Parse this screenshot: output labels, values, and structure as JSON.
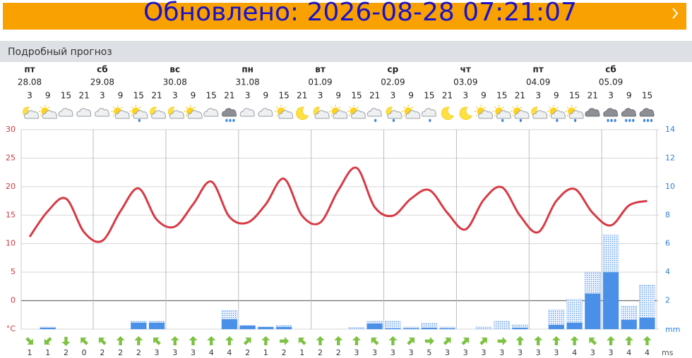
{
  "header": {
    "updated": "Обновлено: 2026-08-28 07:21:07"
  },
  "section_title": "Подробный прогноз",
  "days": [
    {
      "name": "пт",
      "date": "28.08"
    },
    {
      "name": "сб",
      "date": "29.08"
    },
    {
      "name": "вс",
      "date": "30.08"
    },
    {
      "name": "пн",
      "date": "31.08"
    },
    {
      "name": "вт",
      "date": "01.09"
    },
    {
      "name": "ср",
      "date": "02.09"
    },
    {
      "name": "чт",
      "date": "03.09"
    },
    {
      "name": "пт",
      "date": "04.09"
    },
    {
      "name": "сб",
      "date": "05.09"
    }
  ],
  "chart_data": {
    "type": "line",
    "categories": [
      3,
      9,
      15,
      21,
      3,
      9,
      15,
      21,
      3,
      9,
      15,
      21,
      3,
      9,
      15,
      21,
      3,
      9,
      15,
      21,
      3,
      9,
      15,
      21,
      3,
      9,
      15,
      21,
      3,
      9,
      15,
      21,
      3,
      9,
      15
    ],
    "icons": [
      "moon-cloud",
      "sun-cloud",
      "cloud",
      "cloud",
      "cloud",
      "sun-cloud",
      "sun-cloud-rain",
      "moon-cloud",
      "moon-cloud",
      "sun-cloud",
      "cloud",
      "dark-rain",
      "cloud",
      "cloud",
      "sun-cloud",
      "moon",
      "moon-cloud",
      "sun-cloud",
      "sun-cloud",
      "cloud-rain",
      "moon-cloud-rain",
      "sun-cloud",
      "cloud-rain",
      "moon",
      "moon",
      "sun-cloud",
      "sun-cloud-rain",
      "sun-cloud-rain",
      "moon-cloud",
      "sun-cloud-rain",
      "sun-cloud-rain",
      "dark-cloud",
      "dark-rain",
      "dark-rain",
      "dark-rain"
    ],
    "temperature": {
      "color": "#d83a45",
      "values": [
        11.2,
        15.7,
        17.9,
        12,
        10.5,
        15.7,
        19.7,
        14.2,
        13,
        16.9,
        20.9,
        14.7,
        13.7,
        16.9,
        21.4,
        14.9,
        13.7,
        19.4,
        23.3,
        16.4,
        14.9,
        17.9,
        19.4,
        15.4,
        12.5,
        17.7,
        19.9,
        14.9,
        12,
        17.5,
        19.6,
        15.4,
        13.2,
        16.7,
        17.5
      ]
    },
    "precipitation": {
      "color": "#4a90e8",
      "axis": "y2",
      "values": [
        0,
        0.1,
        0,
        0,
        0,
        0,
        0.45,
        0.45,
        0,
        0,
        0,
        0.7,
        0.25,
        0.15,
        0.15,
        0,
        0,
        0,
        0,
        0.4,
        0.05,
        0.05,
        0.1,
        0.05,
        0,
        0,
        0,
        0.1,
        0,
        0.3,
        0.45,
        2.5,
        4,
        0.65,
        0.8
      ],
      "max_values": [
        0,
        0.15,
        0,
        0,
        0,
        0,
        0.55,
        0.55,
        0,
        0,
        0,
        1.3,
        0.25,
        0.15,
        0.25,
        0,
        0,
        0,
        0.1,
        0.55,
        0.55,
        0.15,
        0.4,
        0.15,
        0,
        0.15,
        0.55,
        0.3,
        0,
        1.35,
        2.1,
        4,
        6.6,
        1.6,
        3.1
      ]
    },
    "wind": {
      "color": "#7dc242",
      "unit": "ms",
      "speed": [
        1,
        1,
        2,
        0,
        2,
        2,
        2,
        3,
        3,
        3,
        4,
        4,
        2,
        1,
        2,
        1,
        2,
        2,
        3,
        3,
        3,
        3,
        5,
        3,
        3,
        3,
        3,
        3,
        3,
        3,
        4,
        3,
        3,
        4,
        4
      ],
      "direction": [
        135,
        225,
        180,
        315,
        315,
        0,
        0,
        315,
        0,
        0,
        0,
        0,
        45,
        0,
        90,
        315,
        0,
        0,
        0,
        315,
        0,
        45,
        90,
        45,
        45,
        45,
        90,
        0,
        0,
        0,
        0,
        315,
        0,
        0,
        0
      ]
    },
    "ylim": [
      -5,
      30
    ],
    "yticks": [
      {
        "value": -5,
        "label": "°C"
      },
      0,
      5,
      10,
      15,
      20,
      25,
      30
    ],
    "y2lim": [
      0,
      14
    ],
    "y2ticks": [
      {
        "value": 0,
        "label": "mm"
      },
      2,
      4,
      6,
      8,
      10,
      12,
      14
    ],
    "grid": true
  }
}
